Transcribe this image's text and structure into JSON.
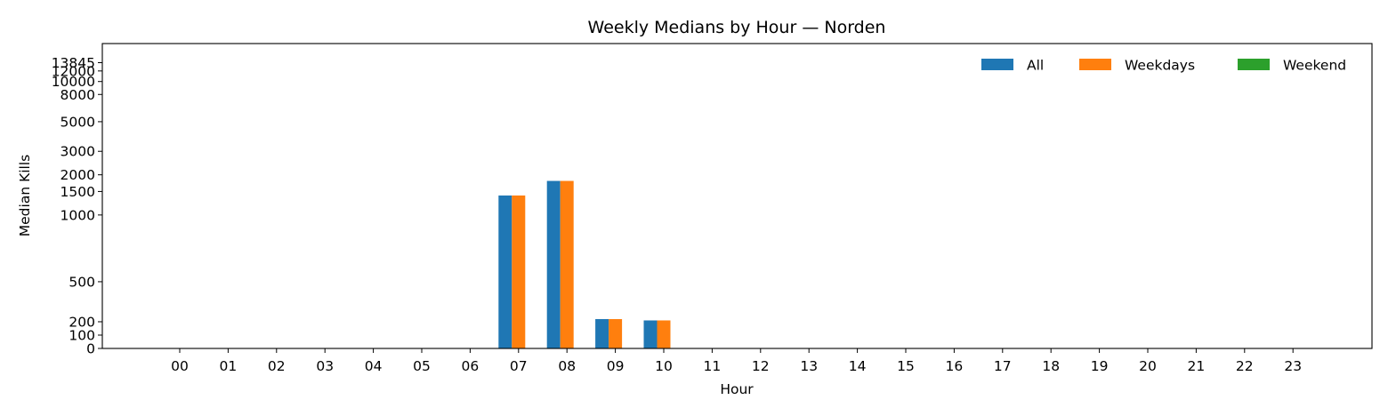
{
  "chart_data": {
    "type": "bar",
    "title": "Weekly Medians by Hour — Norden",
    "xlabel": "Hour",
    "ylabel": "Median Kills",
    "y_scale": "symlog",
    "ylim": [
      0,
      13845
    ],
    "yticks": [
      {
        "value": 0,
        "label": "0"
      },
      {
        "value": 100,
        "label": "100"
      },
      {
        "value": 200,
        "label": "200"
      },
      {
        "value": 500,
        "label": "500"
      },
      {
        "value": 1000,
        "label": "1000"
      },
      {
        "value": 1500,
        "label": "1500"
      },
      {
        "value": 2000,
        "label": "2000"
      },
      {
        "value": 3000,
        "label": "3000"
      },
      {
        "value": 5000,
        "label": "5000"
      },
      {
        "value": 8000,
        "label": "8000"
      },
      {
        "value": 10000,
        "label": "10000"
      },
      {
        "value": 12000,
        "label": "12000"
      },
      {
        "value": 13845,
        "label": "13845"
      }
    ],
    "categories": [
      "00",
      "01",
      "02",
      "03",
      "04",
      "05",
      "06",
      "07",
      "08",
      "09",
      "10",
      "11",
      "12",
      "13",
      "14",
      "15",
      "16",
      "17",
      "18",
      "19",
      "20",
      "21",
      "22",
      "23"
    ],
    "series": [
      {
        "name": "All",
        "color": "#1f77b4",
        "values": [
          0,
          0,
          0,
          0,
          0,
          0,
          0,
          1400,
          1800,
          220,
          210,
          0,
          0,
          0,
          0,
          0,
          0,
          0,
          0,
          0,
          0,
          0,
          0,
          0
        ]
      },
      {
        "name": "Weekdays",
        "color": "#ff7f0e",
        "values": [
          0,
          0,
          0,
          0,
          0,
          0,
          0,
          1400,
          1800,
          220,
          210,
          0,
          0,
          0,
          0,
          0,
          0,
          0,
          0,
          0,
          0,
          0,
          0,
          0
        ]
      },
      {
        "name": "Weekend",
        "color": "#2ca02c",
        "values": [
          0,
          0,
          0,
          0,
          0,
          0,
          0,
          0,
          0,
          0,
          0,
          0,
          0,
          0,
          0,
          0,
          0,
          0,
          0,
          0,
          0,
          0,
          0,
          0
        ]
      }
    ],
    "legend_position": "top-right",
    "grid": false
  }
}
